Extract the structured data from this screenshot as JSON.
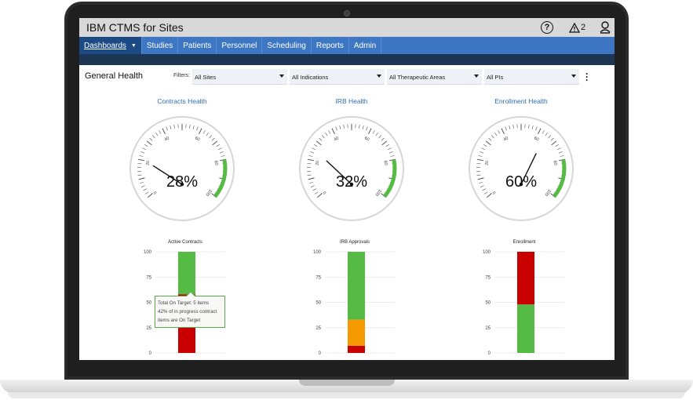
{
  "app": {
    "title": "IBM CTMS for Sites"
  },
  "titlebar": {
    "alert_count": "2"
  },
  "nav": {
    "items": [
      {
        "label": "Dashboards",
        "active": true
      },
      {
        "label": "Studies"
      },
      {
        "label": "Patients"
      },
      {
        "label": "Personnel"
      },
      {
        "label": "Scheduling"
      },
      {
        "label": "Reports"
      },
      {
        "label": "Admin"
      }
    ]
  },
  "page": {
    "heading": "General Health"
  },
  "filters": {
    "label": "Filters:",
    "sites": "All Sites",
    "indications": "All Indications",
    "therapeutic_areas": "All Therapeutic Areas",
    "pis": "All PIs"
  },
  "colors": {
    "green": "#55bb44",
    "red": "#c80000",
    "orange": "#f49a00",
    "link_blue": "#2f6eb5",
    "nav_blue": "#3d76c3"
  },
  "gauges": [
    {
      "title": "Contracts Health",
      "value": 28,
      "display": "28%"
    },
    {
      "title": "IRB Health",
      "value": 32,
      "display": "32%"
    },
    {
      "title": "Enrollment Health",
      "value": 60,
      "display": "60%"
    }
  ],
  "gauge_ticks": [
    "0",
    "20",
    "40",
    "60",
    "80",
    "100"
  ],
  "chart_data": [
    {
      "type": "bar",
      "title": "Active Contracts",
      "yticks": [
        "0",
        "25",
        "50",
        "75",
        "100"
      ],
      "ylim": [
        0,
        100
      ],
      "stacked_segments": [
        {
          "color": "red",
          "value": 58
        },
        {
          "color": "green",
          "value": 42
        }
      ]
    },
    {
      "type": "bar",
      "title": "IRB Approvals",
      "yticks": [
        "0",
        "25",
        "50",
        "75",
        "100"
      ],
      "ylim": [
        0,
        100
      ],
      "stacked_segments": [
        {
          "color": "red",
          "value": 7
        },
        {
          "color": "orange",
          "value": 26
        },
        {
          "color": "green",
          "value": 67
        }
      ]
    },
    {
      "type": "bar",
      "title": "Enrollment",
      "yticks": [
        "0",
        "25",
        "50",
        "75",
        "100"
      ],
      "ylim": [
        0,
        100
      ],
      "stacked_segments": [
        {
          "color": "green",
          "value": 48
        },
        {
          "color": "red",
          "value": 52
        }
      ]
    }
  ],
  "tooltip": {
    "line1": "Total On Target: 5 items",
    "line2": "42% of in progress contract",
    "line3": "items are On Target"
  }
}
